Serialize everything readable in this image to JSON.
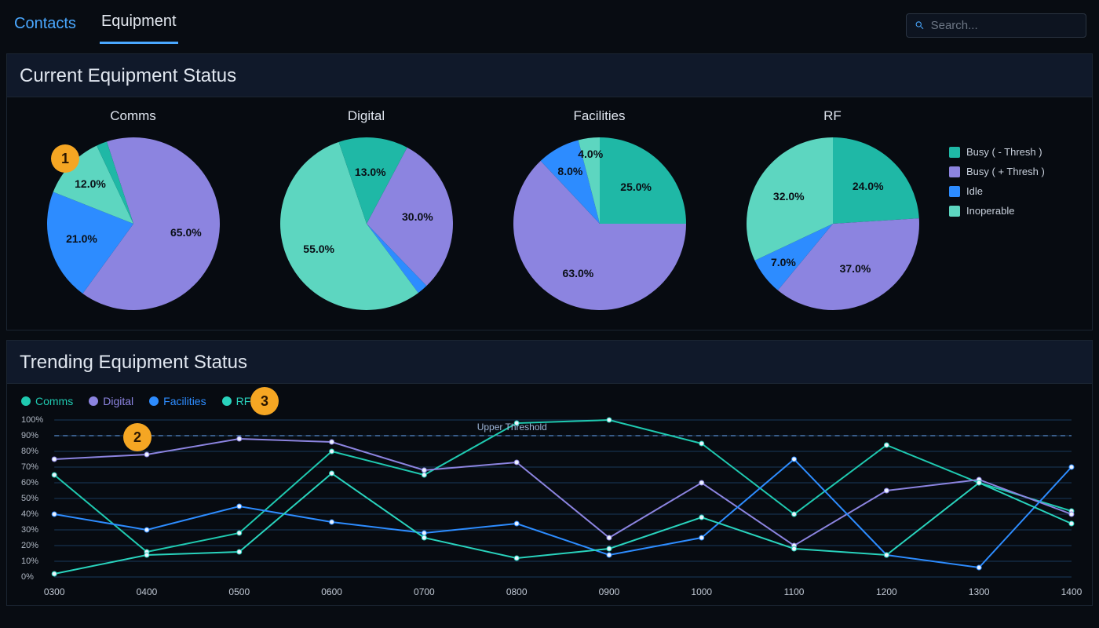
{
  "nav": {
    "tabs": [
      {
        "label": "Contacts",
        "active": false
      },
      {
        "label": "Equipment",
        "active": true
      }
    ],
    "search_placeholder": "Search..."
  },
  "colors": {
    "bg": "#080c12",
    "panel_bg": "#0c121c",
    "panel_title_bg": "#10192a",
    "panel_border": "#1b2532",
    "text": "#d0d6e0",
    "accent": "#4aa8ff",
    "callout": "#f5a623",
    "slice_label": "#0a0f16",
    "grid_line": "#1a3a5a",
    "threshold_line": "#4a78b0"
  },
  "status_panel": {
    "title": "Current Equipment Status",
    "legend": [
      {
        "label": "Busy ( - Thresh )",
        "color": "#1fb8a6"
      },
      {
        "label": "Busy ( + Thresh )",
        "color": "#8c84e0"
      },
      {
        "label": "Idle",
        "color": "#2d8cff"
      },
      {
        "label": "Inoperable",
        "color": "#5dd6c0"
      }
    ],
    "charts": [
      {
        "title": "Comms",
        "type": "pie",
        "start_angle_deg": -18,
        "slices": [
          {
            "value": 65.0,
            "label": "65.0%",
            "color": "#8c84e0",
            "label_r": 0.62
          },
          {
            "value": 21.0,
            "label": "21.0%",
            "color": "#2d8cff",
            "label_r": 0.62
          },
          {
            "value": 12.0,
            "label": "12.0%",
            "color": "#5dd6c0",
            "label_r": 0.68
          },
          {
            "value": 2.0,
            "label": "",
            "color": "#1fb8a6",
            "label_r": 0
          }
        ]
      },
      {
        "title": "Digital",
        "type": "pie",
        "start_angle_deg": 28,
        "slices": [
          {
            "value": 30.0,
            "label": "30.0%",
            "color": "#8c84e0",
            "label_r": 0.6
          },
          {
            "value": 2.0,
            "label": "",
            "color": "#2d8cff",
            "label_r": 0
          },
          {
            "value": 55.0,
            "label": "55.0%",
            "color": "#5dd6c0",
            "label_r": 0.62
          },
          {
            "value": 13.0,
            "label": "13.0%",
            "color": "#1fb8a6",
            "label_r": 0.6
          }
        ]
      },
      {
        "title": "Facilities",
        "type": "pie",
        "start_angle_deg": 0,
        "slices": [
          {
            "value": 25.0,
            "label": "25.0%",
            "color": "#1fb8a6",
            "label_r": 0.6
          },
          {
            "value": 63.0,
            "label": "63.0%",
            "color": "#8c84e0",
            "label_r": 0.62
          },
          {
            "value": 8.0,
            "label": "8.0%",
            "color": "#2d8cff",
            "label_r": 0.7
          },
          {
            "value": 4.0,
            "label": "4.0%",
            "color": "#5dd6c0",
            "label_r": 0.82
          }
        ]
      },
      {
        "title": "RF",
        "type": "pie",
        "start_angle_deg": 0,
        "slices": [
          {
            "value": 24.0,
            "label": "24.0%",
            "color": "#1fb8a6",
            "label_r": 0.6
          },
          {
            "value": 37.0,
            "label": "37.0%",
            "color": "#8c84e0",
            "label_r": 0.58
          },
          {
            "value": 7.0,
            "label": "7.0%",
            "color": "#2d8cff",
            "label_r": 0.72
          },
          {
            "value": 32.0,
            "label": "32.0%",
            "color": "#5dd6c0",
            "label_r": 0.6
          }
        ]
      }
    ]
  },
  "trend_panel": {
    "title": "Trending Equipment Status",
    "type": "line",
    "x_categories": [
      "0300",
      "0400",
      "0500",
      "0600",
      "0700",
      "0800",
      "0900",
      "1000",
      "1100",
      "1200",
      "1300",
      "1400"
    ],
    "ylim": [
      0,
      100
    ],
    "ytick_step": 10,
    "y_suffix": "%",
    "threshold": {
      "value": 90,
      "label": "Upper Threshold",
      "dash": "6 5",
      "color": "#4a78b0"
    },
    "grid_color": "#1a3a5a",
    "line_width": 2,
    "marker_radius": 3,
    "marker_fill": "#eef4ff",
    "series": [
      {
        "name": "Comms",
        "color": "#1fc9b0",
        "values": [
          65,
          16,
          28,
          80,
          65,
          98,
          100,
          85,
          40,
          84,
          60,
          42
        ]
      },
      {
        "name": "Digital",
        "color": "#8c84e0",
        "values": [
          75,
          78,
          88,
          86,
          68,
          73,
          25,
          60,
          20,
          55,
          62,
          40
        ]
      },
      {
        "name": "Facilities",
        "color": "#2d8cff",
        "values": [
          40,
          30,
          45,
          35,
          28,
          34,
          14,
          25,
          75,
          14,
          6,
          70
        ]
      },
      {
        "name": "RF",
        "color": "#29d3bd",
        "values": [
          2,
          14,
          16,
          66,
          25,
          12,
          18,
          38,
          18,
          14,
          60,
          34
        ]
      }
    ]
  },
  "callouts": [
    {
      "n": "1"
    },
    {
      "n": "2"
    },
    {
      "n": "3"
    }
  ]
}
